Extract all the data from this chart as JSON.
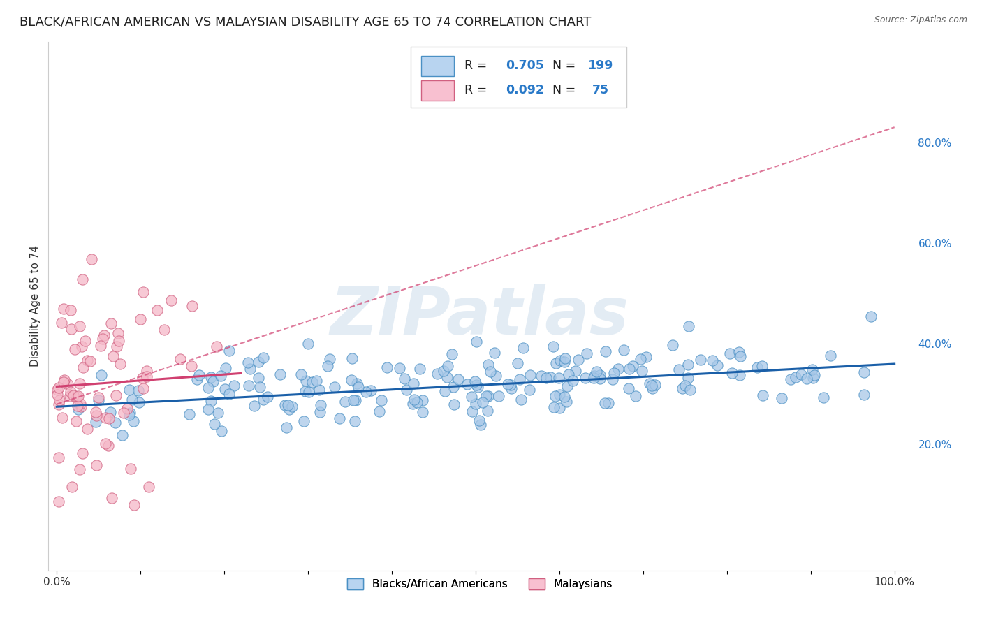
{
  "title": "BLACK/AFRICAN AMERICAN VS MALAYSIAN DISABILITY AGE 65 TO 74 CORRELATION CHART",
  "source": "Source: ZipAtlas.com",
  "ylabel": "Disability Age 65 to 74",
  "xlim": [
    -0.01,
    1.02
  ],
  "ylim": [
    -0.05,
    1.0
  ],
  "xticks": [
    0.0,
    0.1,
    0.2,
    0.3,
    0.4,
    0.5,
    0.6,
    0.7,
    0.8,
    0.9,
    1.0
  ],
  "xticklabels": [
    "0.0%",
    "",
    "",
    "",
    "",
    "",
    "",
    "",
    "",
    "",
    "100.0%"
  ],
  "yticks_right": [
    0.2,
    0.4,
    0.6,
    0.8
  ],
  "ytick_labels_right": [
    "20.0%",
    "40.0%",
    "60.0%",
    "80.0%"
  ],
  "blue_dot_color": "#a8c8e8",
  "blue_edge_color": "#4a90c4",
  "blue_line_color": "#1a5fa8",
  "pink_dot_color": "#f5b8c8",
  "pink_edge_color": "#d06080",
  "pink_line_color": "#d04070",
  "legend_box_blue": "#b8d4f0",
  "legend_box_pink": "#f8c0d0",
  "R_blue": 0.705,
  "N_blue": 199,
  "R_pink": 0.092,
  "N_pink": 75,
  "watermark": "ZIPatlas",
  "background_color": "#ffffff",
  "grid_color": "#cccccc",
  "title_fontsize": 13,
  "axis_label_fontsize": 11,
  "tick_fontsize": 11,
  "blue_seed": 42,
  "pink_seed": 7,
  "blue_intercept": 0.275,
  "blue_slope": 0.085,
  "pink_intercept": 0.315,
  "pink_slope": 0.12,
  "pink_dashed_slope": 0.55,
  "pink_dashed_intercept": 0.28
}
